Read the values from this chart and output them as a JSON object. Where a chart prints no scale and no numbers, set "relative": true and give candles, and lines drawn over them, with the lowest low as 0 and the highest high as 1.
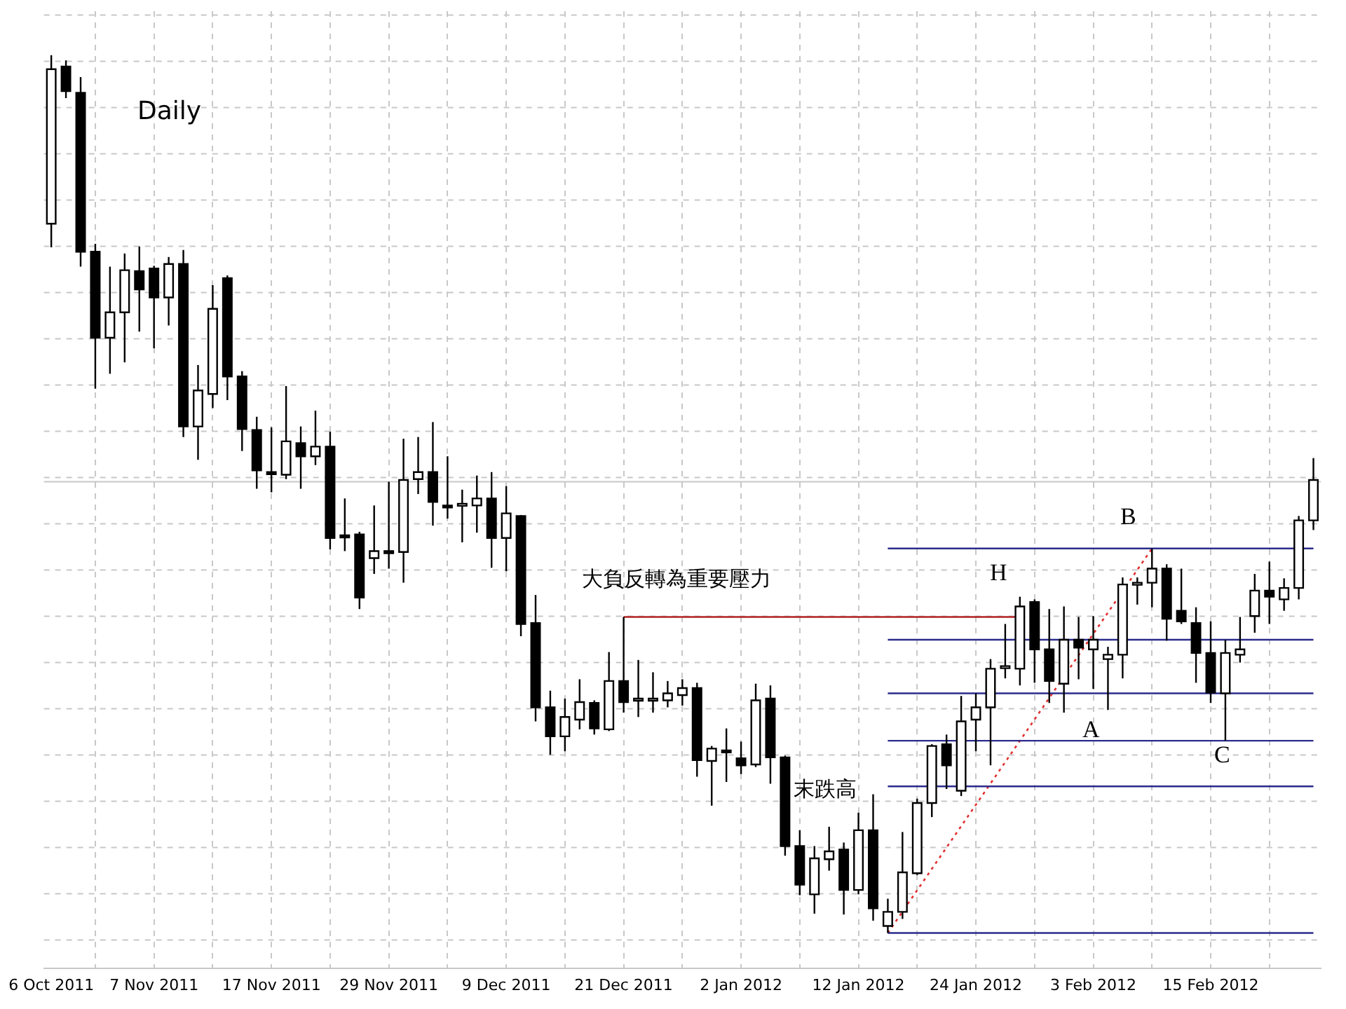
{
  "chart_data": {
    "type": "candlestick",
    "title": "Daily",
    "relative": true,
    "legend": false,
    "grid": true,
    "marker": "none",
    "colors": [
      "#ffffff",
      "#000000",
      "#000000",
      "#000000",
      "#ffffff",
      "#ffffff",
      "#000000",
      "#000000",
      "#ffffff",
      "#000000",
      "#ffffff",
      "#ffffff",
      "#000000",
      "#000000",
      "#000000",
      "#000000",
      "#ffffff",
      "#000000",
      "#ffffff",
      "#000000",
      "#000000",
      "#000000",
      "#ffffff",
      "#000000",
      "#ffffff",
      "#ffffff",
      "#000000",
      "#000000",
      "#ffffff",
      "#ffffff",
      "#000000",
      "#ffffff",
      "#000000",
      "#000000",
      "#000000",
      "#ffffff",
      "#ffffff",
      "#000000",
      "#ffffff",
      "#000000",
      "#ffffff",
      "#ffffff",
      "#ffffff",
      "#ffffff",
      "#000000",
      "#ffffff",
      "#000000",
      "#000000",
      "#ffffff",
      "#000000",
      "#000000",
      "#000000",
      "#ffffff",
      "#ffffff",
      "#000000",
      "#ffffff",
      "#000000",
      "#ffffff",
      "#ffffff",
      "#ffffff",
      "#ffffff",
      "#000000",
      "#ffffff",
      "#ffffff",
      "#ffffff",
      "#ffffff",
      "#ffffff",
      "#000000",
      "#000000",
      "#ffffff",
      "#000000",
      "#ffffff",
      "#ffffff",
      "#ffffff",
      "#ffffff",
      "#ffffff",
      "#000000",
      "#000000",
      "#000000",
      "#000000",
      "#ffffff",
      "#ffffff",
      "#ffffff",
      "#000000",
      "#ffffff",
      "#ffffff",
      "#ffffff"
    ],
    "categories": [
      "6 Oct 2011",
      null,
      null,
      null,
      null,
      null,
      null,
      "7 Nov 2011",
      null,
      null,
      null,
      null,
      null,
      null,
      null,
      "17 Nov 2011",
      null,
      null,
      null,
      null,
      null,
      null,
      null,
      "29 Nov 2011",
      null,
      null,
      null,
      null,
      null,
      null,
      null,
      "9 Dec 2011",
      null,
      null,
      null,
      null,
      null,
      null,
      null,
      "21 Dec 2011",
      null,
      null,
      null,
      null,
      null,
      null,
      null,
      "2 Jan 2012",
      null,
      null,
      null,
      null,
      null,
      null,
      null,
      "12 Jan 2012",
      null,
      null,
      null,
      null,
      null,
      null,
      null,
      "24 Jan 2012",
      null,
      null,
      null,
      null,
      null,
      null,
      null,
      "3 Feb 2012",
      null,
      null,
      null,
      null,
      null,
      null,
      null,
      "15 Feb 2012",
      null,
      null,
      null,
      null,
      null,
      null,
      null
    ],
    "ohlc": [
      [
        0.808,
        1,
        0.781,
        0.984
      ],
      [
        0.987,
        0.994,
        0.951,
        0.959
      ],
      [
        0.957,
        0.975,
        0.759,
        0.776
      ],
      [
        0.776,
        0.785,
        0.62,
        0.678
      ],
      [
        0.678,
        0.759,
        0.637,
        0.707
      ],
      [
        0.707,
        0.774,
        0.65,
        0.755
      ],
      [
        0.754,
        0.782,
        0.685,
        0.733
      ],
      [
        0.757,
        0.76,
        0.666,
        0.724
      ],
      [
        0.724,
        0.77,
        0.692,
        0.762
      ],
      [
        0.762,
        0.778,
        0.565,
        0.577
      ],
      [
        0.577,
        0.647,
        0.539,
        0.618
      ],
      [
        0.614,
        0.738,
        0.598,
        0.711
      ],
      [
        0.746,
        0.749,
        0.607,
        0.634
      ],
      [
        0.634,
        0.64,
        0.549,
        0.574
      ],
      [
        0.573,
        0.588,
        0.506,
        0.527
      ],
      [
        0.525,
        0.576,
        0.502,
        0.524
      ],
      [
        0.522,
        0.623,
        0.517,
        0.56
      ],
      [
        0.558,
        0.577,
        0.506,
        0.543
      ],
      [
        0.543,
        0.595,
        0.533,
        0.554
      ],
      [
        0.554,
        0.571,
        0.437,
        0.45
      ],
      [
        0.453,
        0.495,
        0.435,
        0.451
      ],
      [
        0.454,
        0.457,
        0.369,
        0.382
      ],
      [
        0.427,
        0.487,
        0.409,
        0.435
      ],
      [
        0.435,
        0.514,
        0.415,
        0.434
      ],
      [
        0.434,
        0.563,
        0.399,
        0.516
      ],
      [
        0.517,
        0.565,
        0.5,
        0.525
      ],
      [
        0.525,
        0.582,
        0.464,
        0.491
      ],
      [
        0.487,
        0.543,
        0.472,
        0.486
      ],
      [
        0.487,
        0.505,
        0.445,
        0.489
      ],
      [
        0.487,
        0.521,
        0.456,
        0.495
      ],
      [
        0.495,
        0.525,
        0.416,
        0.45
      ],
      [
        0.45,
        0.509,
        0.412,
        0.478
      ],
      [
        0.475,
        0.476,
        0.338,
        0.352
      ],
      [
        0.353,
        0.385,
        0.241,
        0.257
      ],
      [
        0.257,
        0.276,
        0.203,
        0.224
      ],
      [
        0.224,
        0.267,
        0.207,
        0.246
      ],
      [
        0.243,
        0.289,
        0.232,
        0.263
      ],
      [
        0.262,
        0.265,
        0.226,
        0.233
      ],
      [
        0.232,
        0.32,
        0.23,
        0.287
      ],
      [
        0.287,
        0.36,
        0.251,
        0.263
      ],
      [
        0.265,
        0.311,
        0.246,
        0.267
      ],
      [
        0.265,
        0.297,
        0.251,
        0.267
      ],
      [
        0.265,
        0.287,
        0.257,
        0.273
      ],
      [
        0.271,
        0.289,
        0.259,
        0.279
      ],
      [
        0.279,
        0.285,
        0.178,
        0.197
      ],
      [
        0.196,
        0.213,
        0.145,
        0.21
      ],
      [
        0.208,
        0.233,
        0.172,
        0.207
      ],
      [
        0.199,
        0.218,
        0.181,
        0.191
      ],
      [
        0.192,
        0.284,
        0.189,
        0.265
      ],
      [
        0.267,
        0.282,
        0.17,
        0.2
      ],
      [
        0.2,
        0.202,
        0.088,
        0.099
      ],
      [
        0.099,
        0.117,
        0.043,
        0.055
      ],
      [
        0.044,
        0.099,
        0.022,
        0.085
      ],
      [
        0.084,
        0.121,
        0.071,
        0.093
      ],
      [
        0.095,
        0.103,
        0.021,
        0.049
      ],
      [
        0.049,
        0.137,
        0.044,
        0.117
      ],
      [
        0.117,
        0.158,
        0.014,
        0.028
      ],
      [
        0.008,
        0.039,
        0,
        0.024
      ],
      [
        0.024,
        0.115,
        0.016,
        0.069
      ],
      [
        0.068,
        0.153,
        0.066,
        0.148
      ],
      [
        0.148,
        0.215,
        0.132,
        0.213
      ],
      [
        0.215,
        0.226,
        0.164,
        0.191
      ],
      [
        0.162,
        0.27,
        0.156,
        0.241
      ],
      [
        0.243,
        0.273,
        0.207,
        0.257
      ],
      [
        0.257,
        0.312,
        0.191,
        0.301
      ],
      [
        0.303,
        0.352,
        0.29,
        0.304
      ],
      [
        0.301,
        0.383,
        0.282,
        0.372
      ],
      [
        0.377,
        0.38,
        0.285,
        0.323
      ],
      [
        0.323,
        0.369,
        0.262,
        0.287
      ],
      [
        0.284,
        0.372,
        0.251,
        0.334
      ],
      [
        0.334,
        0.36,
        0.289,
        0.325
      ],
      [
        0.323,
        0.361,
        0.278,
        0.334
      ],
      [
        0.312,
        0.326,
        0.254,
        0.317
      ],
      [
        0.317,
        0.405,
        0.29,
        0.397
      ],
      [
        0.397,
        0.405,
        0.374,
        0.399
      ],
      [
        0.399,
        0.438,
        0.371,
        0.415
      ],
      [
        0.415,
        0.42,
        0.333,
        0.358
      ],
      [
        0.367,
        0.415,
        0.352,
        0.355
      ],
      [
        0.353,
        0.371,
        0.285,
        0.319
      ],
      [
        0.319,
        0.355,
        0.262,
        0.274
      ],
      [
        0.273,
        0.334,
        0.219,
        0.319
      ],
      [
        0.317,
        0.36,
        0.308,
        0.323
      ],
      [
        0.361,
        0.409,
        0.342,
        0.39
      ],
      [
        0.39,
        0.423,
        0.352,
        0.383
      ],
      [
        0.38,
        0.404,
        0.367,
        0.393
      ],
      [
        0.393,
        0.475,
        0.38,
        0.47
      ],
      [
        0.47,
        0.541,
        0.459,
        0.516
      ]
    ],
    "series": [
      {
        "type": "line",
        "color": "#2b2b8c",
        "line_style": "solid",
        "values": [
          null,
          null,
          null,
          null,
          null,
          null,
          null,
          null,
          null,
          null,
          null,
          null,
          null,
          null,
          null,
          null,
          null,
          null,
          null,
          null,
          null,
          null,
          null,
          null,
          null,
          null,
          null,
          null,
          null,
          null,
          null,
          null,
          null,
          null,
          null,
          null,
          null,
          null,
          null,
          null,
          null,
          null,
          null,
          null,
          null,
          null,
          null,
          null,
          null,
          null,
          null,
          null,
          null,
          null,
          null,
          null,
          null,
          0.438,
          0.438,
          0.438,
          0.438,
          0.438,
          0.438,
          0.438,
          0.438,
          0.438,
          0.438,
          0.438,
          0.438,
          0.438,
          0.438,
          0.438,
          0.438,
          0.438,
          0.438,
          0.438,
          0.438,
          0.438,
          0.438,
          0.438,
          0.438,
          0.438,
          0.438,
          0.438,
          0.438,
          0.438,
          0.438
        ]
      },
      {
        "type": "line",
        "color": "#2b2b8c",
        "line_style": "solid",
        "values": [
          null,
          null,
          null,
          null,
          null,
          null,
          null,
          null,
          null,
          null,
          null,
          null,
          null,
          null,
          null,
          null,
          null,
          null,
          null,
          null,
          null,
          null,
          null,
          null,
          null,
          null,
          null,
          null,
          null,
          null,
          null,
          null,
          null,
          null,
          null,
          null,
          null,
          null,
          null,
          null,
          null,
          null,
          null,
          null,
          null,
          null,
          null,
          null,
          null,
          null,
          null,
          null,
          null,
          null,
          null,
          null,
          null,
          0.334,
          0.334,
          0.334,
          0.334,
          0.334,
          0.334,
          0.334,
          0.334,
          0.334,
          0.334,
          0.334,
          0.334,
          0.334,
          0.334,
          0.334,
          0.334,
          0.334,
          0.334,
          0.334,
          0.334,
          0.334,
          0.334,
          0.334,
          0.334,
          0.334,
          0.334,
          0.334,
          0.334,
          0.334,
          0.334
        ]
      },
      {
        "type": "line",
        "color": "#2b2b8c",
        "line_style": "solid",
        "values": [
          null,
          null,
          null,
          null,
          null,
          null,
          null,
          null,
          null,
          null,
          null,
          null,
          null,
          null,
          null,
          null,
          null,
          null,
          null,
          null,
          null,
          null,
          null,
          null,
          null,
          null,
          null,
          null,
          null,
          null,
          null,
          null,
          null,
          null,
          null,
          null,
          null,
          null,
          null,
          null,
          null,
          null,
          null,
          null,
          null,
          null,
          null,
          null,
          null,
          null,
          null,
          null,
          null,
          null,
          null,
          null,
          null,
          0.273,
          0.273,
          0.273,
          0.273,
          0.273,
          0.273,
          0.273,
          0.273,
          0.273,
          0.273,
          0.273,
          0.273,
          0.273,
          0.273,
          0.273,
          0.273,
          0.273,
          0.273,
          0.273,
          0.273,
          0.273,
          0.273,
          0.273,
          0.273,
          0.273,
          0.273,
          0.273,
          0.273,
          0.273,
          0.273
        ]
      },
      {
        "type": "line",
        "color": "#2b2b8c",
        "line_style": "solid",
        "values": [
          null,
          null,
          null,
          null,
          null,
          null,
          null,
          null,
          null,
          null,
          null,
          null,
          null,
          null,
          null,
          null,
          null,
          null,
          null,
          null,
          null,
          null,
          null,
          null,
          null,
          null,
          null,
          null,
          null,
          null,
          null,
          null,
          null,
          null,
          null,
          null,
          null,
          null,
          null,
          null,
          null,
          null,
          null,
          null,
          null,
          null,
          null,
          null,
          null,
          null,
          null,
          null,
          null,
          null,
          null,
          null,
          null,
          0.219,
          0.219,
          0.219,
          0.219,
          0.219,
          0.219,
          0.219,
          0.219,
          0.219,
          0.219,
          0.219,
          0.219,
          0.219,
          0.219,
          0.219,
          0.219,
          0.219,
          0.219,
          0.219,
          0.219,
          0.219,
          0.219,
          0.219,
          0.219,
          0.219,
          0.219,
          0.219,
          0.219,
          0.219,
          0.219
        ]
      },
      {
        "type": "line",
        "color": "#2b2b8c",
        "line_style": "solid",
        "values": [
          null,
          null,
          null,
          null,
          null,
          null,
          null,
          null,
          null,
          null,
          null,
          null,
          null,
          null,
          null,
          null,
          null,
          null,
          null,
          null,
          null,
          null,
          null,
          null,
          null,
          null,
          null,
          null,
          null,
          null,
          null,
          null,
          null,
          null,
          null,
          null,
          null,
          null,
          null,
          null,
          null,
          null,
          null,
          null,
          null,
          null,
          null,
          null,
          null,
          null,
          null,
          null,
          null,
          null,
          null,
          null,
          null,
          0.167,
          0.167,
          0.167,
          0.167,
          0.167,
          0.167,
          0.167,
          0.167,
          0.167,
          0.167,
          0.167,
          0.167,
          0.167,
          0.167,
          0.167,
          0.167,
          0.167,
          0.167,
          0.167,
          0.167,
          0.167,
          0.167,
          0.167,
          0.167,
          0.167,
          0.167,
          0.167,
          0.167,
          0.167,
          0.167
        ]
      },
      {
        "type": "line",
        "color": "#2b2b8c",
        "line_style": "solid",
        "values": [
          null,
          null,
          null,
          null,
          null,
          null,
          null,
          null,
          null,
          null,
          null,
          null,
          null,
          null,
          null,
          null,
          null,
          null,
          null,
          null,
          null,
          null,
          null,
          null,
          null,
          null,
          null,
          null,
          null,
          null,
          null,
          null,
          null,
          null,
          null,
          null,
          null,
          null,
          null,
          null,
          null,
          null,
          null,
          null,
          null,
          null,
          null,
          null,
          null,
          null,
          null,
          null,
          null,
          null,
          null,
          null,
          null,
          0,
          0,
          0,
          0,
          0,
          0,
          0,
          0,
          0,
          0,
          0,
          0,
          0,
          0,
          0,
          0,
          0,
          0,
          0,
          0,
          0,
          0,
          0,
          0,
          0,
          0,
          0,
          0,
          0,
          0
        ]
      },
      {
        "type": "line",
        "color": "#b22222",
        "line_style": "solid",
        "values": [
          null,
          null,
          null,
          null,
          null,
          null,
          null,
          null,
          null,
          null,
          null,
          null,
          null,
          null,
          null,
          null,
          null,
          null,
          null,
          null,
          null,
          null,
          null,
          null,
          null,
          null,
          null,
          null,
          null,
          null,
          null,
          null,
          null,
          null,
          null,
          null,
          null,
          null,
          null,
          0.36,
          0.36,
          0.36,
          0.36,
          0.36,
          0.36,
          0.36,
          0.36,
          0.36,
          0.36,
          0.36,
          0.36,
          0.36,
          0.36,
          0.36,
          0.36,
          0.36,
          0.36,
          0.36,
          0.36,
          0.36,
          0.36,
          0.36,
          0.36,
          0.36,
          0.36,
          0.36,
          0.36,
          null,
          null,
          null,
          null,
          null,
          null,
          null,
          null,
          null,
          null,
          null,
          null,
          null,
          null,
          null,
          null,
          null,
          null,
          null,
          null
        ]
      },
      {
        "type": "line",
        "color": "#e03030",
        "line_style": "dotted",
        "values": [
          null,
          null,
          null,
          null,
          null,
          null,
          null,
          null,
          null,
          null,
          null,
          null,
          null,
          null,
          null,
          null,
          null,
          null,
          null,
          null,
          null,
          null,
          null,
          null,
          null,
          null,
          null,
          null,
          null,
          null,
          null,
          null,
          null,
          null,
          null,
          null,
          null,
          null,
          null,
          null,
          null,
          null,
          null,
          null,
          null,
          null,
          null,
          null,
          null,
          null,
          null,
          null,
          null,
          null,
          null,
          null,
          null,
          0,
          null,
          null,
          null,
          null,
          null,
          null,
          null,
          null,
          null,
          null,
          null,
          null,
          null,
          null,
          null,
          null,
          null,
          0.438,
          null,
          null,
          null,
          null,
          null,
          null,
          null,
          null,
          null,
          null,
          null
        ]
      }
    ],
    "ref_lines": [
      {
        "axis": "y",
        "value": 0.514,
        "color": "#c8c8c8"
      }
    ],
    "annotations": [
      "大負反轉為重要壓力",
      "末跌高",
      "H",
      "B",
      "A",
      "C"
    ]
  }
}
